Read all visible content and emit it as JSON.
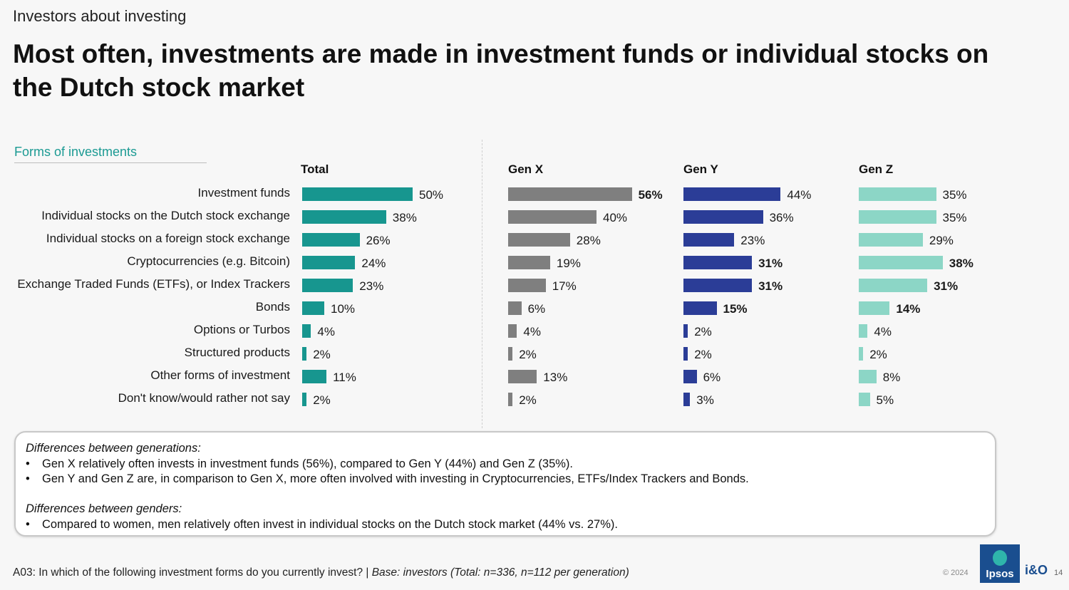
{
  "header": {
    "kicker": "Investors about investing",
    "title": "Most often, investments are made in investment funds or individual stocks on the Dutch stock market"
  },
  "section_label": "Forms of investments",
  "chart_data": {
    "type": "bar",
    "orientation": "horizontal",
    "categories": [
      "Investment funds",
      "Individual stocks on the Dutch stock exchange",
      "Individual stocks on a foreign stock exchange",
      "Cryptocurrencies (e.g. Bitcoin)",
      "Exchange Traded Funds (ETFs), or Index Trackers",
      "Bonds",
      "Options or Turbos",
      "Structured products",
      "Other forms of investment",
      "Don't know/would rather not say"
    ],
    "unit": "%",
    "series": [
      {
        "name": "Total",
        "color": "#17968f",
        "values": [
          50,
          38,
          26,
          24,
          23,
          10,
          4,
          2,
          11,
          2
        ],
        "bold": [
          false,
          false,
          false,
          false,
          false,
          false,
          false,
          false,
          false,
          false
        ]
      },
      {
        "name": "Gen X",
        "color": "#7f7f7f",
        "values": [
          56,
          40,
          28,
          19,
          17,
          6,
          4,
          2,
          13,
          2
        ],
        "bold": [
          true,
          false,
          false,
          false,
          false,
          false,
          false,
          false,
          false,
          false
        ]
      },
      {
        "name": "Gen Y",
        "color": "#2b3d97",
        "values": [
          44,
          36,
          23,
          31,
          31,
          15,
          2,
          2,
          6,
          3
        ],
        "bold": [
          false,
          false,
          false,
          true,
          true,
          true,
          false,
          false,
          false,
          false
        ]
      },
      {
        "name": "Gen Z",
        "color": "#8cd6c6",
        "values": [
          35,
          35,
          29,
          38,
          31,
          14,
          4,
          2,
          8,
          5
        ],
        "bold": [
          false,
          false,
          false,
          true,
          true,
          true,
          false,
          false,
          false,
          false
        ]
      }
    ]
  },
  "notes": {
    "gen_heading": "Differences between generations:",
    "gen_bullets": [
      "Gen X relatively often invests in investment funds (56%), compared to Gen Y (44%) and Gen Z (35%).",
      "Gen Y and Gen Z are, in comparison to Gen X, more often involved with investing in Cryptocurrencies, ETFs/Index Trackers and Bonds."
    ],
    "gender_heading": "Differences between genders:",
    "gender_bullets": [
      "Compared to women, men relatively often invest in individual stocks on the Dutch stock market (44% vs. 27%)."
    ],
    "bullet_char": "•"
  },
  "footer": {
    "question": "A03: In which of the following investment forms do you currently invest? | ",
    "base": "Base: investors (Total: n=336, n=112 per generation)",
    "copyright": "© 2024",
    "logo_text": "Ipsos",
    "logo2_text": "i&O",
    "page_number": "14"
  }
}
